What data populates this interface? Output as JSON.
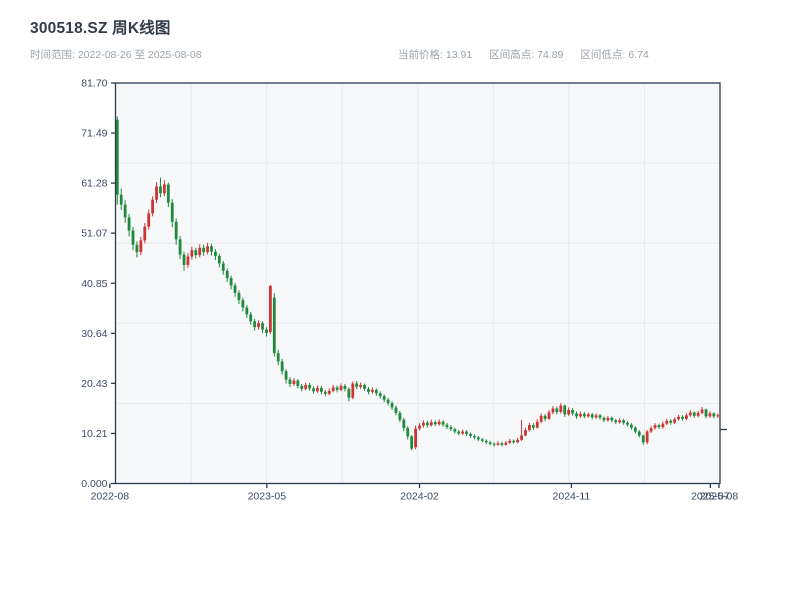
{
  "header": {
    "title": "300518.SZ 周K线图",
    "time_range": "时间范围: 2022-08-26 至 2025-08-08",
    "stats": [
      {
        "label": "当前价格:",
        "value": "13.91"
      },
      {
        "label": "区间高点:",
        "value": "74.89"
      },
      {
        "label": "区间低点:",
        "value": "6.74"
      }
    ]
  },
  "chart_data": {
    "type": "candlestick",
    "title": "300518.SZ 周K线图",
    "frequency": "weekly",
    "date_start": "2022-08-26",
    "date_end": "2025-08-08",
    "current_price": 13.91,
    "range_high": 74.89,
    "range_low": 6.74,
    "ylim": [
      0,
      81.7
    ],
    "y_ticks": [
      "81.70",
      "71.49",
      "61.28",
      "51.07",
      "40.85",
      "30.64",
      "20.43",
      "10.21",
      "0.000"
    ],
    "y_tick_values": [
      81.7,
      71.49,
      61.28,
      51.07,
      40.85,
      30.64,
      20.43,
      10.21,
      0.0
    ],
    "x_ticks": [
      "2022-08",
      "2023-05",
      "2024-02",
      "2024-11",
      "2025-07",
      "2025-08"
    ],
    "x_tick_weeks": [
      -1.9,
      38.1,
      77.0,
      115.7,
      151.1,
      153.3
    ],
    "grid": true,
    "grid_x_divisions": 8,
    "grid_y_divisions": 5,
    "up_color": "#cd3434",
    "down_color": "#1f8a3d",
    "plot_bg": "#f7f8fa",
    "grid_color": "#e8eaee",
    "axis_color": "#2b3a52",
    "tick_label_color": "#3d4a63",
    "ohlc": [
      [
        74.2,
        74.89,
        56.9,
        58.9
      ],
      [
        58.9,
        60.2,
        55.8,
        56.9
      ],
      [
        56.9,
        57.8,
        53.2,
        54.3
      ],
      [
        54.3,
        55.0,
        50.4,
        51.6
      ],
      [
        51.6,
        52.3,
        47.6,
        48.7
      ],
      [
        48.7,
        49.4,
        46.1,
        47.2
      ],
      [
        47.2,
        50.3,
        46.6,
        49.6
      ],
      [
        49.6,
        53.1,
        49.0,
        52.4
      ],
      [
        52.4,
        55.9,
        51.8,
        55.1
      ],
      [
        55.1,
        58.6,
        54.5,
        57.9
      ],
      [
        57.9,
        61.5,
        57.2,
        60.6
      ],
      [
        60.6,
        62.4,
        58.4,
        59.2
      ],
      [
        59.2,
        61.9,
        58.6,
        61.0
      ],
      [
        61.0,
        61.4,
        56.4,
        57.3
      ],
      [
        57.3,
        58.0,
        52.3,
        53.4
      ],
      [
        53.4,
        54.1,
        48.7,
        49.8
      ],
      [
        49.8,
        50.5,
        45.8,
        46.7
      ],
      [
        46.7,
        47.3,
        43.4,
        44.6
      ],
      [
        44.6,
        47.0,
        44.0,
        46.3
      ],
      [
        46.3,
        48.3,
        45.7,
        47.6
      ],
      [
        47.6,
        48.1,
        45.9,
        46.6
      ],
      [
        46.6,
        48.8,
        46.1,
        48.1
      ],
      [
        48.1,
        48.7,
        46.4,
        47.2
      ],
      [
        47.2,
        49.1,
        46.7,
        48.4
      ],
      [
        48.4,
        48.9,
        46.5,
        47.3
      ],
      [
        47.3,
        47.8,
        45.6,
        46.4
      ],
      [
        46.4,
        46.9,
        44.1,
        44.9
      ],
      [
        44.9,
        45.4,
        42.6,
        43.4
      ],
      [
        43.4,
        43.9,
        41.1,
        41.9
      ],
      [
        41.9,
        42.4,
        39.6,
        40.4
      ],
      [
        40.4,
        40.9,
        38.1,
        38.9
      ],
      [
        38.9,
        39.4,
        36.6,
        37.4
      ],
      [
        37.4,
        37.9,
        35.1,
        35.9
      ],
      [
        35.9,
        36.4,
        33.8,
        34.5
      ],
      [
        34.5,
        35.0,
        32.4,
        33.1
      ],
      [
        33.1,
        33.6,
        31.2,
        31.9
      ],
      [
        31.9,
        33.3,
        31.4,
        32.7
      ],
      [
        32.7,
        33.1,
        30.7,
        31.4
      ],
      [
        31.4,
        31.9,
        30.0,
        30.7
      ],
      [
        30.9,
        40.52,
        30.5,
        40.3
      ],
      [
        37.9,
        38.8,
        25.9,
        26.6
      ],
      [
        26.6,
        27.3,
        24.1,
        24.9
      ],
      [
        24.9,
        25.4,
        22.2,
        22.9
      ],
      [
        22.9,
        23.3,
        20.4,
        21.2
      ],
      [
        21.2,
        21.7,
        19.7,
        20.3
      ],
      [
        20.3,
        21.5,
        19.9,
        21.0
      ],
      [
        21.0,
        21.3,
        19.4,
        19.9
      ],
      [
        19.9,
        20.3,
        18.8,
        19.3
      ],
      [
        19.3,
        20.6,
        19.0,
        20.1
      ],
      [
        20.1,
        20.5,
        18.9,
        19.4
      ],
      [
        19.4,
        19.8,
        18.3,
        18.8
      ],
      [
        18.8,
        20.0,
        18.5,
        19.5
      ],
      [
        19.5,
        19.9,
        18.2,
        18.7
      ],
      [
        18.7,
        19.1,
        17.8,
        18.3
      ],
      [
        18.3,
        19.4,
        18.0,
        18.9
      ],
      [
        18.9,
        20.1,
        18.6,
        19.6
      ],
      [
        19.6,
        20.0,
        18.6,
        19.1
      ],
      [
        19.1,
        20.4,
        18.8,
        19.9
      ],
      [
        19.9,
        20.3,
        18.8,
        19.3
      ],
      [
        19.3,
        19.6,
        16.8,
        17.5
      ],
      [
        17.5,
        20.8,
        17.2,
        20.4
      ],
      [
        20.4,
        20.9,
        19.2,
        19.7
      ],
      [
        19.7,
        20.6,
        19.3,
        20.1
      ],
      [
        20.1,
        20.4,
        18.9,
        19.3
      ],
      [
        19.3,
        19.7,
        18.2,
        18.7
      ],
      [
        18.7,
        19.6,
        18.3,
        19.1
      ],
      [
        19.1,
        19.4,
        17.9,
        18.4
      ],
      [
        18.4,
        18.8,
        17.3,
        17.8
      ],
      [
        17.8,
        18.2,
        16.6,
        17.1
      ],
      [
        17.1,
        17.5,
        15.9,
        16.4
      ],
      [
        16.4,
        16.8,
        15.0,
        15.5
      ],
      [
        15.5,
        15.9,
        13.9,
        14.4
      ],
      [
        14.4,
        14.8,
        12.5,
        13.0
      ],
      [
        13.0,
        13.4,
        10.7,
        11.3
      ],
      [
        11.3,
        11.7,
        9.0,
        9.6
      ],
      [
        9.6,
        9.9,
        6.74,
        7.1
      ],
      [
        7.4,
        11.8,
        7.0,
        11.2
      ],
      [
        11.2,
        12.3,
        10.8,
        11.8
      ],
      [
        11.8,
        12.9,
        11.4,
        12.4
      ],
      [
        12.4,
        12.8,
        11.4,
        11.9
      ],
      [
        11.9,
        13.0,
        11.6,
        12.5
      ],
      [
        12.5,
        12.9,
        11.7,
        12.1
      ],
      [
        12.1,
        13.1,
        11.8,
        12.6
      ],
      [
        12.6,
        12.9,
        11.6,
        12.0
      ],
      [
        12.0,
        12.4,
        11.1,
        11.5
      ],
      [
        11.5,
        11.9,
        10.7,
        11.1
      ],
      [
        11.1,
        11.4,
        10.2,
        10.6
      ],
      [
        10.6,
        10.9,
        9.8,
        10.2
      ],
      [
        10.2,
        11.0,
        9.9,
        10.6
      ],
      [
        10.6,
        10.9,
        9.7,
        10.1
      ],
      [
        10.1,
        10.4,
        9.3,
        9.7
      ],
      [
        9.7,
        10.0,
        9.0,
        9.4
      ],
      [
        9.4,
        9.7,
        8.7,
        9.0
      ],
      [
        9.0,
        9.3,
        8.4,
        8.7
      ],
      [
        8.7,
        9.0,
        8.0,
        8.4
      ],
      [
        8.4,
        8.7,
        7.8,
        8.1
      ],
      [
        8.1,
        8.4,
        7.5,
        7.9
      ],
      [
        7.9,
        8.6,
        7.7,
        8.2
      ],
      [
        8.2,
        8.5,
        7.6,
        7.9
      ],
      [
        7.9,
        8.7,
        7.7,
        8.3
      ],
      [
        8.3,
        9.1,
        8.1,
        8.7
      ],
      [
        8.7,
        9.0,
        8.1,
        8.4
      ],
      [
        8.4,
        9.3,
        8.2,
        8.9
      ],
      [
        8.9,
        13.0,
        8.7,
        9.8
      ],
      [
        9.8,
        11.4,
        9.6,
        10.9
      ],
      [
        10.9,
        12.4,
        10.6,
        11.9
      ],
      [
        11.9,
        12.3,
        10.9,
        11.4
      ],
      [
        11.4,
        13.1,
        11.2,
        12.6
      ],
      [
        12.6,
        14.3,
        12.3,
        13.8
      ],
      [
        13.8,
        14.2,
        12.7,
        13.2
      ],
      [
        13.2,
        15.0,
        13.0,
        14.5
      ],
      [
        14.5,
        15.8,
        14.1,
        15.3
      ],
      [
        15.3,
        15.7,
        14.1,
        14.6
      ],
      [
        14.6,
        16.4,
        14.3,
        15.9
      ],
      [
        15.9,
        16.1,
        13.6,
        14.1
      ],
      [
        14.1,
        15.5,
        13.8,
        15.0
      ],
      [
        15.0,
        15.4,
        13.9,
        14.3
      ],
      [
        14.3,
        14.7,
        13.2,
        13.7
      ],
      [
        13.7,
        14.7,
        13.4,
        14.2
      ],
      [
        14.2,
        14.6,
        13.3,
        13.7
      ],
      [
        13.7,
        14.5,
        13.4,
        14.1
      ],
      [
        14.1,
        14.4,
        13.1,
        13.5
      ],
      [
        13.5,
        14.3,
        13.2,
        13.9
      ],
      [
        13.9,
        14.2,
        13.0,
        13.4
      ],
      [
        13.4,
        13.7,
        12.5,
        12.9
      ],
      [
        12.9,
        13.8,
        12.6,
        13.4
      ],
      [
        13.4,
        13.7,
        12.5,
        12.9
      ],
      [
        12.9,
        13.2,
        12.1,
        12.5
      ],
      [
        12.5,
        13.3,
        12.2,
        12.9
      ],
      [
        12.9,
        13.2,
        12.0,
        12.4
      ],
      [
        12.4,
        12.7,
        11.6,
        12.0
      ],
      [
        12.0,
        12.3,
        11.0,
        11.4
      ],
      [
        11.4,
        11.7,
        10.2,
        10.6
      ],
      [
        10.6,
        10.9,
        9.4,
        9.8
      ],
      [
        9.8,
        10.0,
        7.9,
        8.4
      ],
      [
        8.4,
        10.9,
        8.0,
        10.6
      ],
      [
        10.6,
        11.7,
        10.3,
        11.3
      ],
      [
        11.3,
        12.3,
        11.0,
        11.9
      ],
      [
        11.9,
        12.2,
        11.1,
        11.5
      ],
      [
        11.5,
        12.6,
        11.2,
        12.2
      ],
      [
        12.2,
        13.2,
        11.9,
        12.8
      ],
      [
        12.8,
        13.1,
        12.0,
        12.4
      ],
      [
        12.4,
        13.5,
        12.1,
        13.1
      ],
      [
        13.1,
        14.0,
        12.8,
        13.6
      ],
      [
        13.6,
        13.9,
        12.8,
        13.2
      ],
      [
        13.2,
        14.3,
        12.9,
        13.9
      ],
      [
        13.9,
        15.0,
        13.6,
        14.5
      ],
      [
        14.5,
        14.7,
        13.4,
        13.8
      ],
      [
        13.8,
        14.8,
        13.5,
        14.4
      ],
      [
        14.4,
        15.6,
        14.1,
        15.1
      ],
      [
        15.1,
        15.3,
        13.3,
        13.7
      ],
      [
        13.7,
        14.7,
        13.4,
        14.3
      ],
      [
        14.3,
        14.5,
        13.3,
        13.7
      ],
      [
        13.7,
        14.3,
        13.4,
        13.91
      ]
    ]
  }
}
